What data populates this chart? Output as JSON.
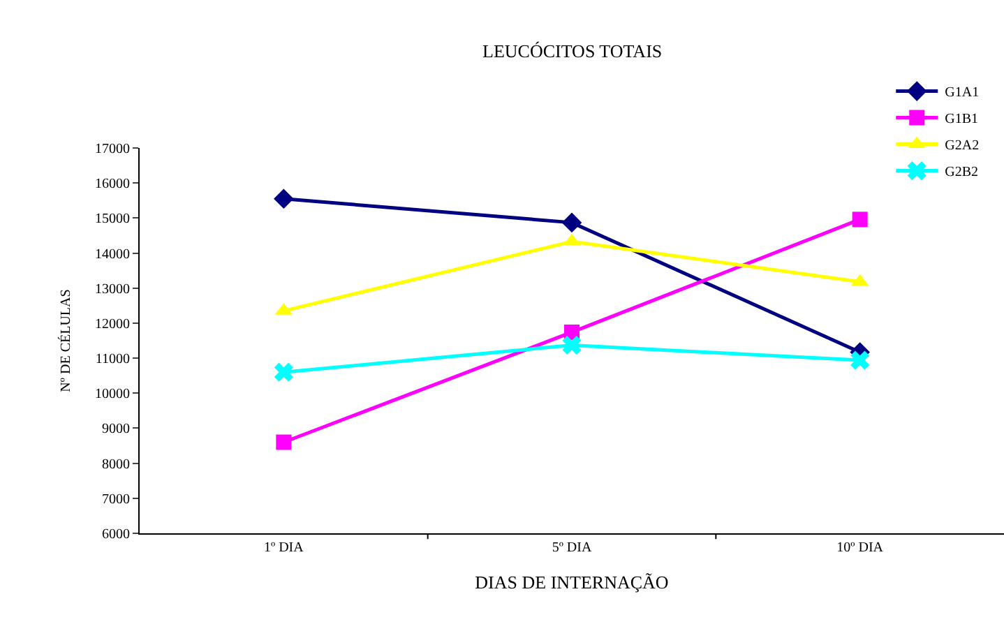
{
  "chart_data": {
    "type": "line",
    "title": "LEUCÓCITOS TOTAIS",
    "xlabel": "DIAS DE INTERNAÇÃO",
    "ylabel": "Nº DE CÉLULAS",
    "categories": [
      "1º DIA",
      "5º DIA",
      "10º DIA"
    ],
    "series": [
      {
        "name": "G1A1",
        "color": "#000080",
        "marker": "diamond",
        "values": [
          15550,
          14870,
          11170
        ]
      },
      {
        "name": "G1B1",
        "color": "#ff00ff",
        "marker": "square",
        "values": [
          8600,
          11740,
          14960
        ]
      },
      {
        "name": "G2A2",
        "color": "#ffff00",
        "marker": "triangle",
        "values": [
          12350,
          14330,
          13180
        ]
      },
      {
        "name": "G2B2",
        "color": "#00ffff",
        "marker": "cross",
        "values": [
          10600,
          11370,
          10940
        ]
      }
    ],
    "ylim": [
      6000,
      17000
    ],
    "yticks": [
      6000,
      7000,
      8000,
      9000,
      10000,
      11000,
      12000,
      13000,
      14000,
      15000,
      16000,
      17000
    ],
    "legend": "top right"
  }
}
